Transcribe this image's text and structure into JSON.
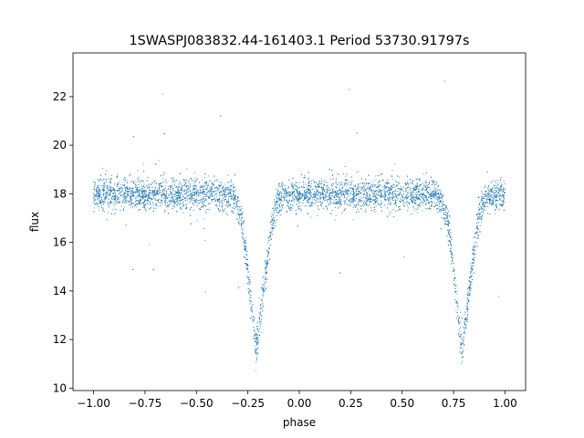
{
  "chart_data": {
    "type": "scatter",
    "title": "1SWASPJ083832.44-161403.1 Period 53730.91797s",
    "xlabel": "phase",
    "ylabel": "flux",
    "xlim": [
      -1.1,
      1.1
    ],
    "ylim": [
      9.9,
      23.8
    ],
    "xticks": [
      -1.0,
      -0.75,
      -0.5,
      -0.25,
      0.0,
      0.25,
      0.5,
      0.75,
      1.0
    ],
    "xtick_labels": [
      "−1.00",
      "−0.75",
      "−0.50",
      "−0.25",
      "0.00",
      "0.25",
      "0.50",
      "0.75",
      "1.00"
    ],
    "yticks": [
      10,
      12,
      14,
      16,
      18,
      20,
      22
    ],
    "ytick_labels": [
      "10",
      "12",
      "14",
      "16",
      "18",
      "20",
      "22"
    ],
    "grid": false,
    "legend": "none",
    "marker_color": "#1f77b4",
    "description_points": [
      [
        -1.0,
        18.0
      ],
      [
        -0.9,
        18.0
      ],
      [
        -0.8,
        18.0
      ],
      [
        -0.7,
        18.0
      ],
      [
        -0.6,
        18.0
      ],
      [
        -0.5,
        18.0
      ],
      [
        -0.4,
        18.0
      ],
      [
        -0.32,
        17.9
      ],
      [
        -0.28,
        17.0
      ],
      [
        -0.25,
        14.8
      ],
      [
        -0.23,
        13.2
      ],
      [
        -0.21,
        11.6
      ],
      [
        -0.19,
        12.9
      ],
      [
        -0.16,
        14.9
      ],
      [
        -0.13,
        16.9
      ],
      [
        -0.1,
        17.8
      ],
      [
        0.0,
        18.0
      ],
      [
        0.1,
        18.0
      ],
      [
        0.2,
        18.0
      ],
      [
        0.3,
        18.0
      ],
      [
        0.4,
        18.0
      ],
      [
        0.5,
        18.0
      ],
      [
        0.6,
        18.0
      ],
      [
        0.68,
        17.9
      ],
      [
        0.72,
        17.0
      ],
      [
        0.75,
        14.8
      ],
      [
        0.77,
        13.2
      ],
      [
        0.79,
        11.6
      ],
      [
        0.81,
        12.9
      ],
      [
        0.84,
        14.9
      ],
      [
        0.87,
        16.9
      ],
      [
        0.9,
        17.8
      ],
      [
        1.0,
        18.0
      ]
    ]
  }
}
